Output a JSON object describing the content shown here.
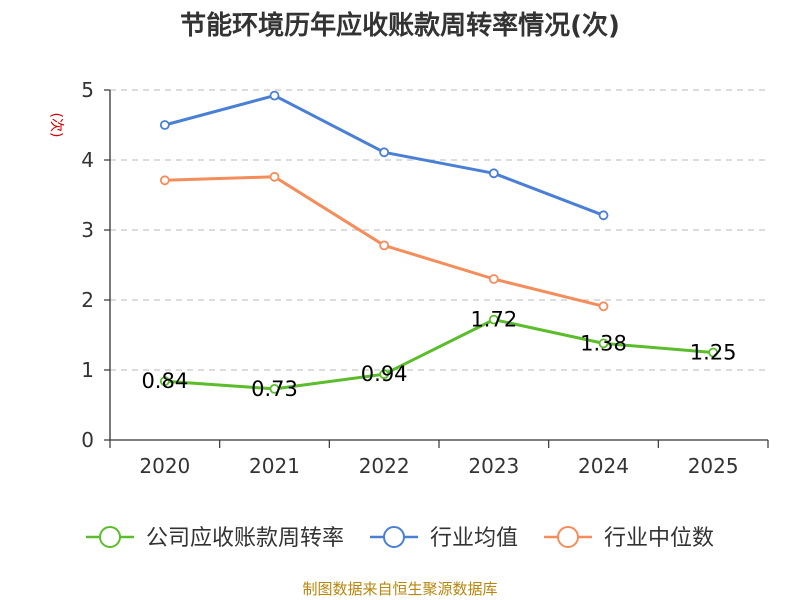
{
  "chart_data": {
    "type": "line",
    "title": "节能环境历年应收账款周转率情况(次)",
    "ylabel": "(次)",
    "xlabel": "",
    "categories": [
      "2020",
      "2021",
      "2022",
      "2023",
      "2024",
      "2025"
    ],
    "ylim": [
      0,
      5
    ],
    "yticks": [
      "0",
      "1",
      "2",
      "3",
      "4",
      "5"
    ],
    "grid": true,
    "legend_position": "bottom",
    "series": [
      {
        "name": "公司应收账款周转率",
        "color": "#5bbd2b",
        "values": [
          0.84,
          0.73,
          0.94,
          1.72,
          1.38,
          1.25
        ],
        "labels": [
          "0.84",
          "0.73",
          "0.94",
          "1.72",
          "1.38",
          "1.25"
        ]
      },
      {
        "name": "行业均值",
        "color": "#4a7fd6",
        "values": [
          4.5,
          4.92,
          4.11,
          3.81,
          3.21,
          null
        ]
      },
      {
        "name": "行业中位数",
        "color": "#f58d5b",
        "values": [
          3.71,
          3.76,
          2.78,
          2.3,
          1.91,
          null
        ]
      }
    ],
    "source": "制图数据来自恒生聚源数据库"
  }
}
